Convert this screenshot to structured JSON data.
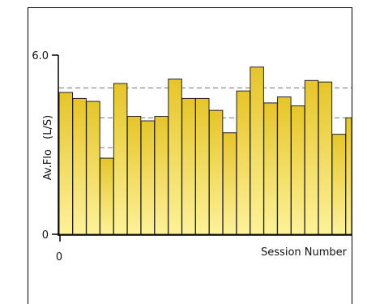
{
  "chart_data": {
    "type": "bar",
    "ylabel": "Av.Flo   (L/S)",
    "xlabel": "Session Number",
    "y_ticks": [
      "6.0",
      "0"
    ],
    "x_ticks": [
      "0"
    ],
    "ylim": [
      0,
      6.0
    ],
    "reference_line": 4.9,
    "values": [
      4.75,
      4.55,
      4.45,
      2.55,
      5.05,
      3.95,
      3.8,
      3.95,
      5.2,
      4.55,
      4.55,
      4.15,
      3.4,
      4.8,
      5.6,
      4.4,
      4.6,
      4.3,
      5.15,
      5.1,
      3.35,
      3.9
    ],
    "colors": {
      "bar_top": "#e6c52a",
      "bar_bottom": "#fdf29a",
      "bar_stroke": "#222222",
      "grid": "#777777"
    }
  }
}
